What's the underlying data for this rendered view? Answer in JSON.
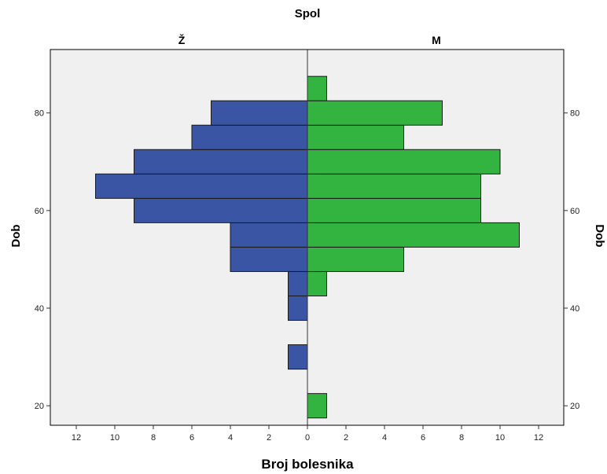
{
  "chart_data": {
    "type": "bar",
    "orientation": "horizontal-population-pyramid",
    "title": "Spol",
    "xlabel": "Broj bolesnika",
    "ylabel": "Dob",
    "ylabel_right": "Dob",
    "x_ticks": [
      "12",
      "10",
      "8",
      "6",
      "4",
      "2",
      "0",
      "2",
      "4",
      "6",
      "8",
      "10",
      "12"
    ],
    "y_ticks": [
      "20",
      "40",
      "60",
      "80"
    ],
    "bin_width": 5,
    "ylim": [
      16,
      93
    ],
    "xlim": [
      -12.5,
      12.5
    ],
    "grid": false,
    "panel_background": "#f0f0f0",
    "series": [
      {
        "name": "Ž",
        "side": "left",
        "color": "#3a55a4",
        "bins": [
          {
            "from": 27.5,
            "to": 32.5,
            "value": 1
          },
          {
            "from": 37.5,
            "to": 42.5,
            "value": 1
          },
          {
            "from": 42.5,
            "to": 47.5,
            "value": 1
          },
          {
            "from": 47.5,
            "to": 52.5,
            "value": 4
          },
          {
            "from": 52.5,
            "to": 57.5,
            "value": 4
          },
          {
            "from": 57.5,
            "to": 62.5,
            "value": 9
          },
          {
            "from": 62.5,
            "to": 67.5,
            "value": 11
          },
          {
            "from": 67.5,
            "to": 72.5,
            "value": 9
          },
          {
            "from": 72.5,
            "to": 77.5,
            "value": 6
          },
          {
            "from": 77.5,
            "to": 82.5,
            "value": 5
          }
        ]
      },
      {
        "name": "M",
        "side": "right",
        "color": "#33b441",
        "bins": [
          {
            "from": 17.5,
            "to": 22.5,
            "value": 1
          },
          {
            "from": 42.5,
            "to": 47.5,
            "value": 1
          },
          {
            "from": 47.5,
            "to": 52.5,
            "value": 5
          },
          {
            "from": 52.5,
            "to": 57.5,
            "value": 11
          },
          {
            "from": 57.5,
            "to": 62.5,
            "value": 9
          },
          {
            "from": 62.5,
            "to": 67.5,
            "value": 9
          },
          {
            "from": 67.5,
            "to": 72.5,
            "value": 10
          },
          {
            "from": 72.5,
            "to": 77.5,
            "value": 5
          },
          {
            "from": 77.5,
            "to": 82.5,
            "value": 7
          },
          {
            "from": 82.5,
            "to": 87.5,
            "value": 1
          }
        ]
      }
    ]
  }
}
